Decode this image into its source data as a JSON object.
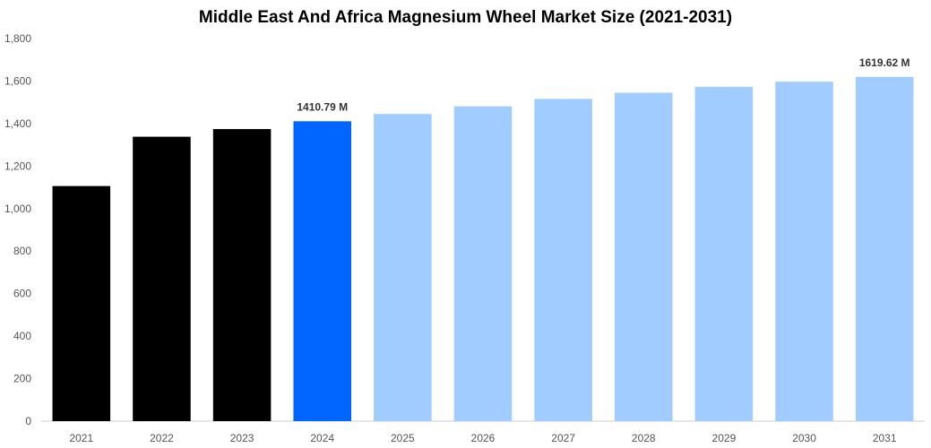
{
  "chart_data": {
    "type": "bar",
    "title": "Middle East And Africa Magnesium Wheel Market Size (2021-2031)",
    "xlabel": "",
    "ylabel": "",
    "categories": [
      "2021",
      "2022",
      "2023",
      "2024",
      "2025",
      "2026",
      "2027",
      "2028",
      "2029",
      "2030",
      "2031"
    ],
    "values": [
      1106,
      1338,
      1374,
      1410.79,
      1445,
      1481,
      1516,
      1545,
      1573,
      1597,
      1619.62
    ],
    "bar_colors": [
      "#000000",
      "#000000",
      "#000000",
      "#0066FF",
      "#A0CCFF",
      "#A0CCFF",
      "#A0CCFF",
      "#A0CCFF",
      "#A0CCFF",
      "#A0CCFF",
      "#A0CCFF"
    ],
    "data_labels": [
      {
        "index": 3,
        "text": "1410.79 M"
      },
      {
        "index": 10,
        "text": "1619.62 M"
      }
    ],
    "ylim": [
      0,
      1800
    ],
    "yticks": [
      0,
      200,
      400,
      600,
      800,
      1000,
      1200,
      1400,
      1600,
      1800
    ],
    "ytick_labels": [
      "0",
      "200",
      "400",
      "600",
      "800",
      "1,000",
      "1,200",
      "1,400",
      "1,600",
      "1,800"
    ],
    "grid": false,
    "legend": "none"
  }
}
